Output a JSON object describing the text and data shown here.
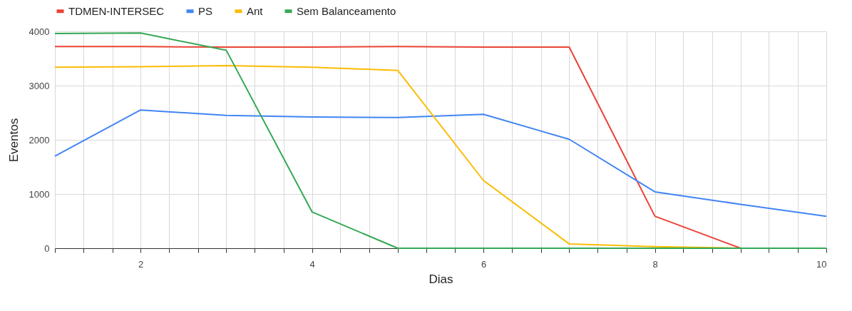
{
  "chart_data": {
    "type": "line",
    "xlabel": "Dias",
    "ylabel": "Eventos",
    "x": [
      1,
      2,
      3,
      4,
      5,
      6,
      7,
      8,
      9,
      10
    ],
    "series": [
      {
        "name": "TDMEN-INTERSEC",
        "color": "#ea4335",
        "values": [
          3720,
          3720,
          3710,
          3710,
          3720,
          3710,
          3710,
          590,
          0,
          0
        ]
      },
      {
        "name": "PS",
        "color": "#4285f4",
        "values": [
          1700,
          2550,
          2450,
          2420,
          2410,
          2470,
          2010,
          1040,
          810,
          590
        ]
      },
      {
        "name": "Ant",
        "color": "#fbbc04",
        "values": [
          3340,
          3350,
          3370,
          3340,
          3280,
          1250,
          80,
          30,
          0,
          0
        ]
      },
      {
        "name": "Sem Balanceamento",
        "color": "#34a853",
        "values": [
          3960,
          3970,
          3650,
          670,
          0,
          0,
          0,
          0,
          0,
          0
        ]
      }
    ],
    "xlim": [
      1,
      10
    ],
    "ylim": [
      0,
      4000
    ],
    "yticks": [
      0,
      1000,
      2000,
      3000,
      4000
    ],
    "xticks": [
      {
        "value": 1,
        "label": null
      },
      {
        "value": 1.33,
        "label": null
      },
      {
        "value": 1.67,
        "label": null
      },
      2,
      {
        "value": 2.33,
        "label": null
      },
      {
        "value": 2.67,
        "label": null
      },
      {
        "value": 3,
        "label": null
      },
      {
        "value": 3.33,
        "label": null
      },
      {
        "value": 3.67,
        "label": null
      },
      4,
      {
        "value": 4.33,
        "label": null
      },
      {
        "value": 4.67,
        "label": null
      },
      {
        "value": 5,
        "label": null
      },
      {
        "value": 5.33,
        "label": null
      },
      {
        "value": 5.67,
        "label": null
      },
      6,
      {
        "value": 6.33,
        "label": null
      },
      {
        "value": 6.67,
        "label": null
      },
      {
        "value": 7,
        "label": null
      },
      {
        "value": 7.33,
        "label": null
      },
      {
        "value": 7.67,
        "label": null
      },
      8,
      {
        "value": 8.33,
        "label": null
      },
      {
        "value": 8.67,
        "label": null
      },
      {
        "value": 9,
        "label": null
      },
      {
        "value": 9.33,
        "label": null
      },
      {
        "value": 9.67,
        "label": null
      },
      10
    ],
    "grid": true,
    "legend": "top",
    "marker": "none",
    "line_style": "solid"
  }
}
